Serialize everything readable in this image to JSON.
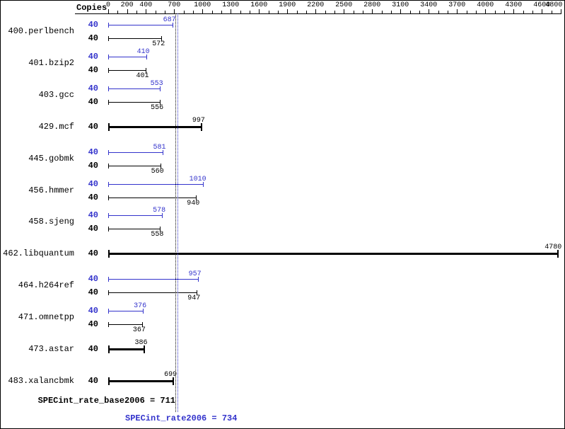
{
  "header": {
    "copies_label": "Copies"
  },
  "colors": {
    "peak": "#3333cc",
    "base": "#000000"
  },
  "chart_data": {
    "type": "bar",
    "orientation": "horizontal",
    "copies_column": "Copies",
    "x_axis": {
      "min": 0,
      "max": 4800,
      "minor_tick_interval": 100,
      "labeled_ticks": [
        0,
        200,
        400,
        700,
        1000,
        1300,
        1600,
        1900,
        2200,
        2500,
        2800,
        3100,
        3400,
        3700,
        4000,
        4300,
        4600,
        4800
      ]
    },
    "benchmarks": [
      {
        "name": "400.perlbench",
        "copies": 40,
        "peak": 687,
        "base": 572,
        "single_bar": false
      },
      {
        "name": "401.bzip2",
        "copies": 40,
        "peak": 410,
        "base": 401,
        "single_bar": false
      },
      {
        "name": "403.gcc",
        "copies": 40,
        "peak": 553,
        "base": 556,
        "single_bar": false
      },
      {
        "name": "429.mcf",
        "copies": 40,
        "peak": 997,
        "base": 997,
        "single_bar": true
      },
      {
        "name": "445.gobmk",
        "copies": 40,
        "peak": 581,
        "base": 560,
        "single_bar": false
      },
      {
        "name": "456.hmmer",
        "copies": 40,
        "peak": 1010,
        "base": 940,
        "single_bar": false
      },
      {
        "name": "458.sjeng",
        "copies": 40,
        "peak": 578,
        "base": 558,
        "single_bar": false
      },
      {
        "name": "462.libquantum",
        "copies": 40,
        "peak": 4780,
        "base": 4780,
        "single_bar": true
      },
      {
        "name": "464.h264ref",
        "copies": 40,
        "peak": 957,
        "base": 947,
        "single_bar": false
      },
      {
        "name": "471.omnetpp",
        "copies": 40,
        "peak": 376,
        "base": 367,
        "single_bar": false
      },
      {
        "name": "473.astar",
        "copies": 40,
        "peak": 386,
        "base": 386,
        "single_bar": true
      },
      {
        "name": "483.xalancbmk",
        "copies": 40,
        "peak": 699,
        "base": 699,
        "single_bar": true
      }
    ],
    "reference_lines": [
      {
        "label": "SPECint_rate_base2006 = 711",
        "value": 711,
        "color": "#000000",
        "style": "dotted"
      },
      {
        "label": "SPECint_rate2006 = 734",
        "value": 734,
        "color": "#3333cc",
        "style": "dotted"
      }
    ]
  }
}
